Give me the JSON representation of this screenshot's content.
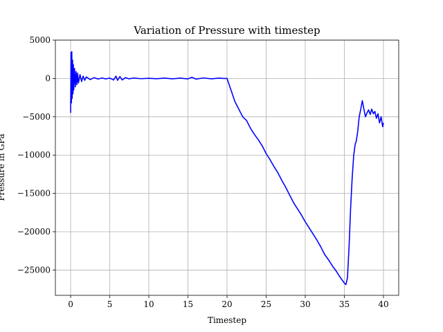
{
  "chart_data": {
    "type": "line",
    "title": "Variation of Pressure with timestep",
    "xlabel": "Timestep",
    "ylabel": "Pressure in GPa",
    "xlim": [
      -1.95,
      41.95
    ],
    "ylim": [
      -28300,
      5000
    ],
    "xticks": [
      0,
      5,
      10,
      15,
      20,
      25,
      30,
      35,
      40
    ],
    "yticks": [
      5000,
      0,
      -5000,
      -10000,
      -15000,
      -20000,
      -25000
    ],
    "ytick_labels": [
      "5000",
      "0",
      "−5000",
      "−10000",
      "−15000",
      "−20000",
      "−25000"
    ],
    "grid": true,
    "series": [
      {
        "color": "#0000ff",
        "points": [
          [
            0.0,
            -4500
          ],
          [
            0.05,
            3400
          ],
          [
            0.1,
            -3200
          ],
          [
            0.15,
            3500
          ],
          [
            0.2,
            -2600
          ],
          [
            0.25,
            2400
          ],
          [
            0.3,
            -2000
          ],
          [
            0.35,
            1800
          ],
          [
            0.4,
            -1500
          ],
          [
            0.5,
            1300
          ],
          [
            0.6,
            -1100
          ],
          [
            0.7,
            900
          ],
          [
            0.8,
            -800
          ],
          [
            0.9,
            700
          ],
          [
            1.0,
            -600
          ],
          [
            1.2,
            500
          ],
          [
            1.4,
            -400
          ],
          [
            1.6,
            300
          ],
          [
            1.8,
            -250
          ],
          [
            2.0,
            200
          ],
          [
            2.5,
            -150
          ],
          [
            3.0,
            100
          ],
          [
            3.5,
            -80
          ],
          [
            4.0,
            60
          ],
          [
            4.5,
            -60
          ],
          [
            5.0,
            50
          ],
          [
            5.5,
            -200
          ],
          [
            5.8,
            300
          ],
          [
            6.0,
            -250
          ],
          [
            6.3,
            250
          ],
          [
            6.6,
            -200
          ],
          [
            7.0,
            100
          ],
          [
            7.5,
            -50
          ],
          [
            8.0,
            50
          ],
          [
            9.0,
            -30
          ],
          [
            10.0,
            20
          ],
          [
            11.0,
            -40
          ],
          [
            12.0,
            40
          ],
          [
            13.0,
            -50
          ],
          [
            14.0,
            40
          ],
          [
            15.0,
            -60
          ],
          [
            15.5,
            150
          ],
          [
            16.0,
            -80
          ],
          [
            17.0,
            60
          ],
          [
            18.0,
            -50
          ],
          [
            19.0,
            40
          ],
          [
            19.5,
            0
          ],
          [
            20.0,
            0
          ],
          [
            20.5,
            -1500
          ],
          [
            21.0,
            -3000
          ],
          [
            21.5,
            -4000
          ],
          [
            22.0,
            -5000
          ],
          [
            22.5,
            -5500
          ],
          [
            23.0,
            -6500
          ],
          [
            23.5,
            -7300
          ],
          [
            24.0,
            -8000
          ],
          [
            24.5,
            -8800
          ],
          [
            25.0,
            -9800
          ],
          [
            25.5,
            -10600
          ],
          [
            26.0,
            -11500
          ],
          [
            26.5,
            -12300
          ],
          [
            27.0,
            -13300
          ],
          [
            27.5,
            -14200
          ],
          [
            28.0,
            -15200
          ],
          [
            28.5,
            -16200
          ],
          [
            29.0,
            -17000
          ],
          [
            29.5,
            -17800
          ],
          [
            30.0,
            -18700
          ],
          [
            30.5,
            -19500
          ],
          [
            31.0,
            -20300
          ],
          [
            31.5,
            -21100
          ],
          [
            32.0,
            -22000
          ],
          [
            32.5,
            -23000
          ],
          [
            33.0,
            -23700
          ],
          [
            33.5,
            -24500
          ],
          [
            34.0,
            -25200
          ],
          [
            34.5,
            -26000
          ],
          [
            35.0,
            -26700
          ],
          [
            35.2,
            -26900
          ],
          [
            35.4,
            -26000
          ],
          [
            35.6,
            -22000
          ],
          [
            35.8,
            -17000
          ],
          [
            36.0,
            -13000
          ],
          [
            36.2,
            -10000
          ],
          [
            36.4,
            -8500
          ],
          [
            36.5,
            -8300
          ],
          [
            36.7,
            -7000
          ],
          [
            36.9,
            -5000
          ],
          [
            37.1,
            -4000
          ],
          [
            37.3,
            -2900
          ],
          [
            37.5,
            -4000
          ],
          [
            37.7,
            -5000
          ],
          [
            37.9,
            -4500
          ],
          [
            38.1,
            -4100
          ],
          [
            38.3,
            -4700
          ],
          [
            38.5,
            -4000
          ],
          [
            38.7,
            -4600
          ],
          [
            38.9,
            -4300
          ],
          [
            39.1,
            -5200
          ],
          [
            39.3,
            -4600
          ],
          [
            39.5,
            -5800
          ],
          [
            39.7,
            -5000
          ],
          [
            39.9,
            -6300
          ],
          [
            40.0,
            -5800
          ]
        ]
      }
    ]
  }
}
